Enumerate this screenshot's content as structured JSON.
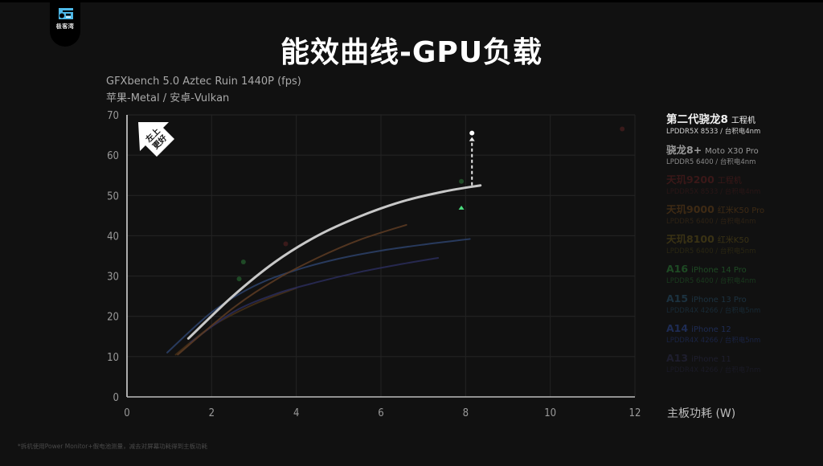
{
  "logo": {
    "text": "极客湾",
    "icon": "gk-logo-icon"
  },
  "header": {
    "title": "能效曲线-GPU负载",
    "subtitle_line1": "GFXbench 5.0 Aztec Ruin 1440P (fps)",
    "subtitle_line2": "苹果-Metal / 安卓-Vulkan"
  },
  "badge": {
    "line1": "左上",
    "line2": "更好",
    "icon": "arrow-up-left-icon"
  },
  "legend": [
    {
      "chip": "第二代骁龙8",
      "device": "工程机",
      "sub": "LPDDR5X 8533 / 台积电4nm",
      "color": "#f2f2f2",
      "subcolor": "#d0d0d0"
    },
    {
      "chip": "骁龙8+",
      "device": "Moto X30 Pro",
      "sub": "LPDDR5 6400 / 台积电4nm",
      "color": "#9a9a9a",
      "subcolor": "#8a8a8a"
    },
    {
      "chip": "天玑9200",
      "device": "工程机",
      "sub": "LPDDR5X 8533 / 台积电4nm",
      "color": "#3a1818",
      "subcolor": "#2a1616"
    },
    {
      "chip": "天玑9000",
      "device": "红米K50 Pro",
      "sub": "LPDDR5 6400 / 台积电4nm",
      "color": "#3e2a14",
      "subcolor": "#2e2214"
    },
    {
      "chip": "天玑8100",
      "device": "红米K50",
      "sub": "LPDDR5 6400 / 台积电5nm",
      "color": "#3a3214",
      "subcolor": "#2a2612"
    },
    {
      "chip": "A16",
      "device": "iPhone 14 Pro",
      "sub": "LPDDR5 6400 / 台积电4nm",
      "color": "#1e4a24",
      "subcolor": "#1a3a1e"
    },
    {
      "chip": "A15",
      "device": "iPhone 13 Pro",
      "sub": "LPDDR4X 4266 / 台积电5nm",
      "color": "#1c3240",
      "subcolor": "#182a36"
    },
    {
      "chip": "A14",
      "device": "iPhone 12",
      "sub": "LPDDR4X 4266 / 台积电5nm",
      "color": "#1e2c54",
      "subcolor": "#1a2444"
    },
    {
      "chip": "A13",
      "device": "iPhone 11",
      "sub": "LPDDR4X 4266 / 台积电7nm",
      "color": "#1e1e2e",
      "subcolor": "#1a1a26"
    }
  ],
  "axis": {
    "xlabel": "主板功耗 (W)"
  },
  "footnote": "*拆机使用Power Monitor+假电池测量，减去对屏幕功耗得到主板功耗",
  "chart_data": {
    "type": "line",
    "title": "能效曲线-GPU负载",
    "subtitle": "GFXbench 5.0 Aztec Ruin 1440P (fps) · 苹果-Metal / 安卓-Vulkan",
    "xlabel": "主板功耗 (W)",
    "ylabel": "fps",
    "xlim": [
      0,
      12
    ],
    "ylim": [
      0,
      70
    ],
    "xticks": [
      0,
      2,
      4,
      6,
      8,
      10,
      12
    ],
    "yticks": [
      0,
      10,
      20,
      30,
      40,
      50,
      60,
      70
    ],
    "grid": true,
    "legend_position": "right",
    "annotation": "左上更好",
    "series": [
      {
        "name": "第二代骁龙8 工程机",
        "color": "#c8c8c8",
        "width": 3,
        "opacity": 1.0,
        "x": [
          1.45,
          2.5,
          3.5,
          4.5,
          5.5,
          6.5,
          7.5,
          8.35
        ],
        "y": [
          14.5,
          25,
          33.5,
          40,
          44.8,
          48.5,
          51,
          52.5
        ]
      },
      {
        "name": "天玑9000 红米K50 Pro",
        "color": "#5a3a22",
        "width": 2,
        "opacity": 0.9,
        "x": [
          1.2,
          2.5,
          3.5,
          4.5,
          5.5,
          6.6
        ],
        "y": [
          10.5,
          22,
          29,
          34.5,
          39,
          42.7
        ]
      },
      {
        "name": "A15 iPhone 13 Pro",
        "color": "#2b3f66",
        "width": 2,
        "opacity": 0.9,
        "x": [
          0.95,
          2.0,
          3.0,
          4.0,
          5.0,
          6.0,
          7.0,
          8.1
        ],
        "y": [
          11,
          21,
          27.5,
          31.5,
          34.3,
          36.3,
          37.8,
          39.2
        ]
      },
      {
        "name": "A14 iPhone 12",
        "color": "#2a2d5a",
        "width": 2,
        "opacity": 0.85,
        "x": [
          1.5,
          2.5,
          3.5,
          4.5,
          5.5,
          6.5,
          7.35
        ],
        "y": [
          13.5,
          21,
          25.5,
          28.5,
          31,
          33,
          34.5
        ]
      },
      {
        "name": "天玑8100 红米K50",
        "color": "#4a3218",
        "width": 2,
        "opacity": 0.8,
        "x": [
          1.15,
          2.0,
          3.0,
          4.0
        ],
        "y": [
          10.5,
          17.5,
          23,
          27
        ]
      }
    ],
    "points": [
      {
        "name": "第二代骁龙8 峰值",
        "x": 8.15,
        "y": 65.5,
        "color": "#ffffff"
      },
      {
        "name": "A16 iPhone 14 Pro",
        "x": 2.75,
        "y": 33.5,
        "color": "#1f4a26"
      },
      {
        "name": "A16 iPhone 14 Pro",
        "x": 2.65,
        "y": 29.3,
        "color": "#1f4a26"
      },
      {
        "name": "A16 iPhone 14 Pro",
        "x": 7.9,
        "y": 53.5,
        "color": "#1f4a26"
      },
      {
        "name": "天玑9200",
        "x": 3.75,
        "y": 38,
        "color": "#3a1a1a"
      },
      {
        "name": "天玑9200",
        "x": 11.7,
        "y": 66.5,
        "color": "#3a1a1a"
      }
    ],
    "arrows": [
      {
        "from": [
          8.15,
          52.5
        ],
        "to": [
          8.15,
          64.5
        ],
        "style": "dashed",
        "color": "#e8e8e8"
      },
      {
        "from": [
          7.9,
          40.5
        ],
        "to": [
          7.9,
          47.5
        ],
        "style": "dashed",
        "color_from": "#2a5fd0",
        "color_to": "#4ce080"
      }
    ]
  }
}
